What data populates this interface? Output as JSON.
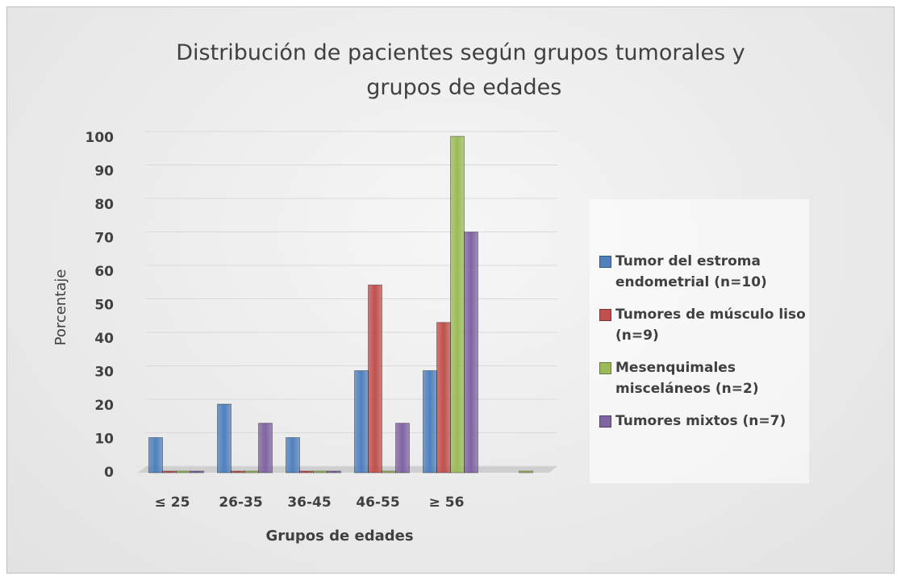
{
  "chart_data": {
    "type": "bar",
    "title": "Distribución de pacientes según grupos tumorales y grupos de edades",
    "x_label": "Grupos de edades",
    "y_label": "Porcentaje",
    "categories": [
      "≤ 25",
      "26-35",
      "36-45",
      "46-55",
      "≥ 56",
      null
    ],
    "series": [
      {
        "name": "Tumor del estroma endometrial (n=10)",
        "color": "#4f81bd",
        "values": [
          10,
          20,
          10,
          30,
          30,
          null
        ]
      },
      {
        "name": "Tumores de músculo liso (n=9)",
        "color": "#c0504d",
        "values": [
          0,
          0,
          0,
          55.6,
          44.4,
          null
        ]
      },
      {
        "name": "Mesenquimales misceláneos (n=2)",
        "color": "#9bbb59",
        "values": [
          0,
          0,
          0,
          0,
          100,
          0
        ]
      },
      {
        "name": "Tumores mixtos (n=7)",
        "color": "#8064a2",
        "values": [
          0,
          14.3,
          0,
          14.3,
          71.4,
          null
        ]
      }
    ],
    "ylim": [
      0,
      100
    ],
    "yticks": [
      0,
      10,
      20,
      30,
      40,
      50,
      60,
      70,
      80,
      90,
      100
    ],
    "grid": true,
    "legend": "right"
  }
}
